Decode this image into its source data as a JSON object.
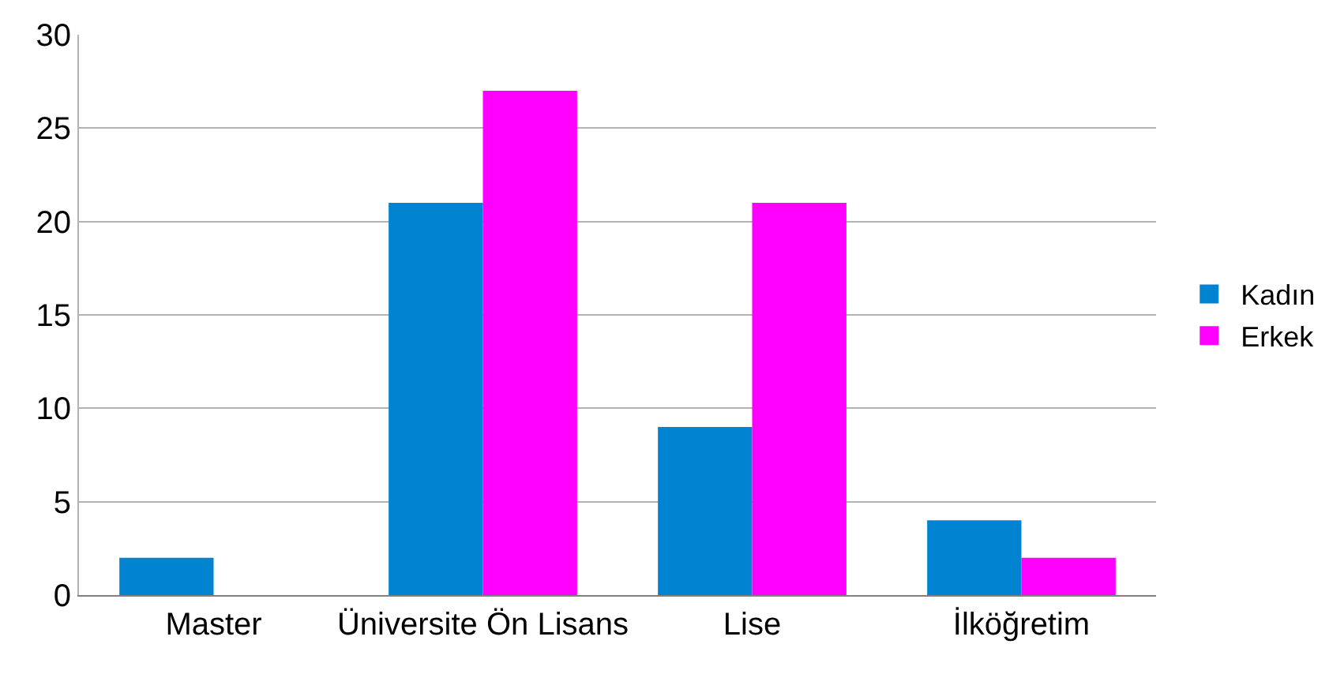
{
  "chart_data": {
    "type": "bar",
    "categories": [
      "Master",
      "Üniversite Ön Lisans",
      "Lise",
      "İlköğretim"
    ],
    "series": [
      {
        "name": "Kadın",
        "color": "#0084d1",
        "values": [
          2,
          21,
          9,
          4
        ]
      },
      {
        "name": "Erkek",
        "color": "#ff00ff",
        "values": [
          0,
          27,
          21,
          2
        ]
      }
    ],
    "ylim": [
      0,
      30
    ],
    "yticks": [
      0,
      5,
      10,
      15,
      20,
      25,
      30
    ],
    "grid": "y",
    "legend": "right"
  }
}
